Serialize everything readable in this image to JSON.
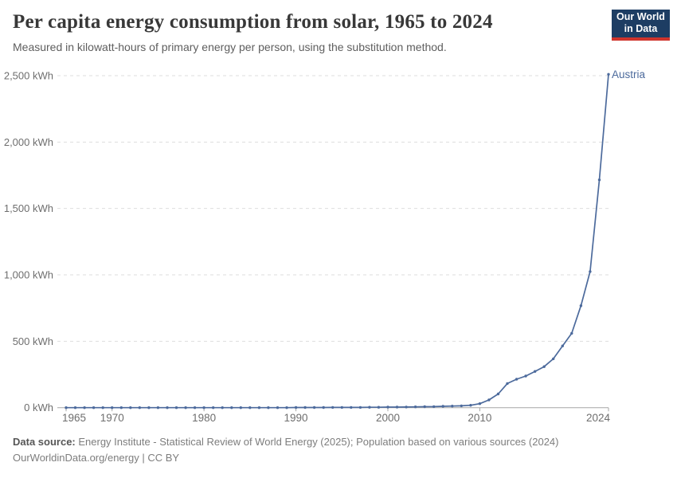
{
  "header": {
    "title": "Per capita energy consumption from solar, 1965 to 2024",
    "subtitle": "Measured in kilowatt-hours of primary energy per person, using the substitution method.",
    "logo": {
      "line1": "Our World",
      "line2": "in Data"
    }
  },
  "chart_data": {
    "type": "line",
    "title": "Per capita energy consumption from solar, 1965 to 2024",
    "unit": "kWh",
    "xlim": [
      1965,
      2024
    ],
    "ylim": [
      0,
      2500
    ],
    "xticks": [
      1965,
      1970,
      1980,
      1990,
      2000,
      2010,
      2024
    ],
    "yticks": [
      0,
      500,
      1000,
      1500,
      2000,
      2500
    ],
    "ytick_suffix": " kWh",
    "grid": "horizontal-dashed",
    "legend_position": "end-of-line-label",
    "years": [
      1965,
      1966,
      1967,
      1968,
      1969,
      1970,
      1971,
      1972,
      1973,
      1974,
      1975,
      1976,
      1977,
      1978,
      1979,
      1980,
      1981,
      1982,
      1983,
      1984,
      1985,
      1986,
      1987,
      1988,
      1989,
      1990,
      1991,
      1992,
      1993,
      1994,
      1995,
      1996,
      1997,
      1998,
      1999,
      2000,
      2001,
      2002,
      2003,
      2004,
      2005,
      2006,
      2007,
      2008,
      2009,
      2010,
      2011,
      2012,
      2013,
      2014,
      2015,
      2016,
      2017,
      2018,
      2019,
      2020,
      2021,
      2022,
      2023,
      2024
    ],
    "series": [
      {
        "name": "Austria",
        "color": "#4c6a9c",
        "values": [
          0,
          0,
          0,
          0,
          0,
          0,
          0,
          0,
          0,
          0,
          0,
          0,
          0,
          0,
          0,
          0,
          0,
          0,
          0,
          0,
          0,
          0,
          0,
          0,
          0,
          1,
          1,
          1,
          1,
          2,
          2,
          2,
          2,
          3,
          3,
          4,
          4,
          5,
          6,
          7,
          8,
          10,
          12,
          14,
          18,
          30,
          58,
          103,
          182,
          214,
          238,
          273,
          309,
          368,
          465,
          560,
          768,
          1025,
          1715,
          2510
        ]
      }
    ]
  },
  "colors": {
    "line": "#4c6a9c",
    "entity_label": "#4c6a9c",
    "gridline": "#dedede",
    "axis": "#a5a5a5",
    "tick_label": "#6e6e6e"
  },
  "footer": {
    "source_label": "Data source:",
    "source_text": " Energy Institute - Statistical Review of World Energy (2025); Population based on various sources (2024)",
    "license": "OurWorldinData.org/energy | CC BY"
  }
}
